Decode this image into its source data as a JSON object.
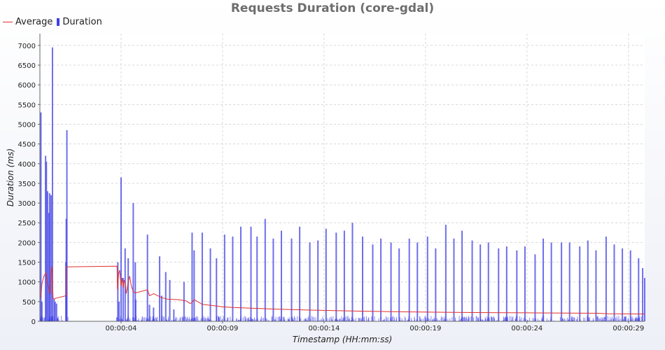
{
  "chart_data": {
    "type": "bar",
    "title": "Requests Duration (core-gdal)",
    "xlabel": "Timestamp (HH:mm:ss)",
    "ylabel": "Duration (ms)",
    "ylim": [
      0,
      7300
    ],
    "y_ticks": [
      0,
      500,
      1000,
      1500,
      2000,
      2500,
      3000,
      3500,
      4000,
      4500,
      5000,
      5500,
      6000,
      6500,
      7000
    ],
    "x_range_seconds": [
      0.0,
      29.8
    ],
    "x_ticks": [
      {
        "t": 4,
        "label": "00:00:04"
      },
      {
        "t": 9,
        "label": "00:00:09"
      },
      {
        "t": 14,
        "label": "00:00:14"
      },
      {
        "t": 19,
        "label": "00:00:19"
      },
      {
        "t": 24,
        "label": "00:00:24"
      },
      {
        "t": 29,
        "label": "00:00:29"
      }
    ],
    "grid": true,
    "legend_position": "top-left",
    "colors": {
      "average": "#e0302f",
      "duration": "#3e3fe6"
    },
    "series": [
      {
        "name": "Average",
        "kind": "line",
        "points": [
          [
            0.05,
            600
          ],
          [
            0.1,
            950
          ],
          [
            0.2,
            1150
          ],
          [
            0.3,
            1230
          ],
          [
            0.4,
            900
          ],
          [
            0.5,
            700
          ],
          [
            0.55,
            1200
          ],
          [
            0.6,
            1400
          ],
          [
            0.65,
            600
          ],
          [
            0.7,
            550
          ],
          [
            0.75,
            580
          ],
          [
            1.3,
            650
          ],
          [
            1.3,
            1380
          ],
          [
            3.8,
            1400
          ],
          [
            3.82,
            800
          ],
          [
            3.88,
            1200
          ],
          [
            3.93,
            1300
          ],
          [
            4.0,
            900
          ],
          [
            4.05,
            1100
          ],
          [
            4.1,
            850
          ],
          [
            4.15,
            1050
          ],
          [
            4.2,
            950
          ],
          [
            4.25,
            700
          ],
          [
            4.35,
            980
          ],
          [
            4.42,
            1150
          ],
          [
            4.5,
            900
          ],
          [
            4.6,
            750
          ],
          [
            4.7,
            720
          ],
          [
            5.3,
            800
          ],
          [
            5.4,
            650
          ],
          [
            5.6,
            700
          ],
          [
            6.0,
            600
          ],
          [
            6.3,
            560
          ],
          [
            6.8,
            550
          ],
          [
            7.2,
            520
          ],
          [
            7.4,
            450
          ],
          [
            7.5,
            480
          ],
          [
            7.6,
            550
          ],
          [
            8.0,
            430
          ],
          [
            8.5,
            400
          ],
          [
            9.0,
            370
          ],
          [
            9.5,
            350
          ],
          [
            10.5,
            330
          ],
          [
            11.5,
            310
          ],
          [
            13.0,
            290
          ],
          [
            14.5,
            270
          ],
          [
            16.0,
            255
          ],
          [
            18.0,
            240
          ],
          [
            20.0,
            230
          ],
          [
            22.0,
            220
          ],
          [
            24.0,
            215
          ],
          [
            26.0,
            210
          ],
          [
            27.5,
            205
          ],
          [
            28.0,
            190
          ],
          [
            29.8,
            185
          ]
        ]
      },
      {
        "name": "Duration",
        "kind": "bar",
        "points": [
          [
            0.05,
            5300
          ],
          [
            0.1,
            500
          ],
          [
            0.28,
            4200
          ],
          [
            0.32,
            4050
          ],
          [
            0.38,
            3300
          ],
          [
            0.45,
            2750
          ],
          [
            0.48,
            3250
          ],
          [
            0.55,
            3200
          ],
          [
            0.62,
            6950
          ],
          [
            0.7,
            550
          ],
          [
            0.75,
            500
          ],
          [
            0.82,
            450
          ],
          [
            1.28,
            1500
          ],
          [
            1.3,
            2600
          ],
          [
            1.33,
            4850
          ],
          [
            3.8,
            100
          ],
          [
            3.84,
            1500
          ],
          [
            3.9,
            500
          ],
          [
            4.0,
            3650
          ],
          [
            4.1,
            1100
          ],
          [
            4.2,
            1850
          ],
          [
            4.35,
            1600
          ],
          [
            4.6,
            3000
          ],
          [
            4.7,
            1500
          ],
          [
            4.72,
            550
          ],
          [
            5.3,
            2200
          ],
          [
            5.4,
            420
          ],
          [
            5.6,
            350
          ],
          [
            5.9,
            1650
          ],
          [
            6.0,
            650
          ],
          [
            6.2,
            1250
          ],
          [
            6.4,
            1050
          ],
          [
            6.6,
            300
          ],
          [
            7.1,
            1000
          ],
          [
            7.5,
            2250
          ],
          [
            7.6,
            1800
          ],
          [
            8.0,
            2250
          ],
          [
            8.4,
            1850
          ],
          [
            8.7,
            1600
          ],
          [
            9.1,
            2200
          ],
          [
            9.5,
            2150
          ],
          [
            9.9,
            2400
          ],
          [
            10.4,
            2400
          ],
          [
            10.7,
            2150
          ],
          [
            11.1,
            2600
          ],
          [
            11.5,
            2100
          ],
          [
            11.9,
            2300
          ],
          [
            12.4,
            2100
          ],
          [
            12.8,
            2400
          ],
          [
            13.3,
            2000
          ],
          [
            13.7,
            2050
          ],
          [
            14.1,
            2350
          ],
          [
            14.6,
            2250
          ],
          [
            15.0,
            2300
          ],
          [
            15.4,
            2500
          ],
          [
            15.9,
            2150
          ],
          [
            16.4,
            1950
          ],
          [
            16.8,
            2100
          ],
          [
            17.3,
            2000
          ],
          [
            17.7,
            1850
          ],
          [
            18.2,
            2100
          ],
          [
            18.6,
            2000
          ],
          [
            19.1,
            2150
          ],
          [
            19.5,
            1850
          ],
          [
            20.0,
            2450
          ],
          [
            20.4,
            2100
          ],
          [
            20.8,
            2300
          ],
          [
            21.3,
            2050
          ],
          [
            21.7,
            1950
          ],
          [
            22.1,
            2000
          ],
          [
            22.6,
            1850
          ],
          [
            23.0,
            1900
          ],
          [
            23.5,
            1800
          ],
          [
            23.9,
            1900
          ],
          [
            24.4,
            1700
          ],
          [
            24.8,
            2100
          ],
          [
            25.2,
            2000
          ],
          [
            25.7,
            2000
          ],
          [
            26.1,
            2000
          ],
          [
            26.6,
            1900
          ],
          [
            27.0,
            2050
          ],
          [
            27.4,
            1800
          ],
          [
            27.9,
            2150
          ],
          [
            28.3,
            1950
          ],
          [
            28.7,
            1850
          ],
          [
            29.1,
            1800
          ],
          [
            29.5,
            1600
          ],
          [
            29.7,
            1350
          ],
          [
            29.8,
            1100
          ]
        ]
      }
    ]
  }
}
